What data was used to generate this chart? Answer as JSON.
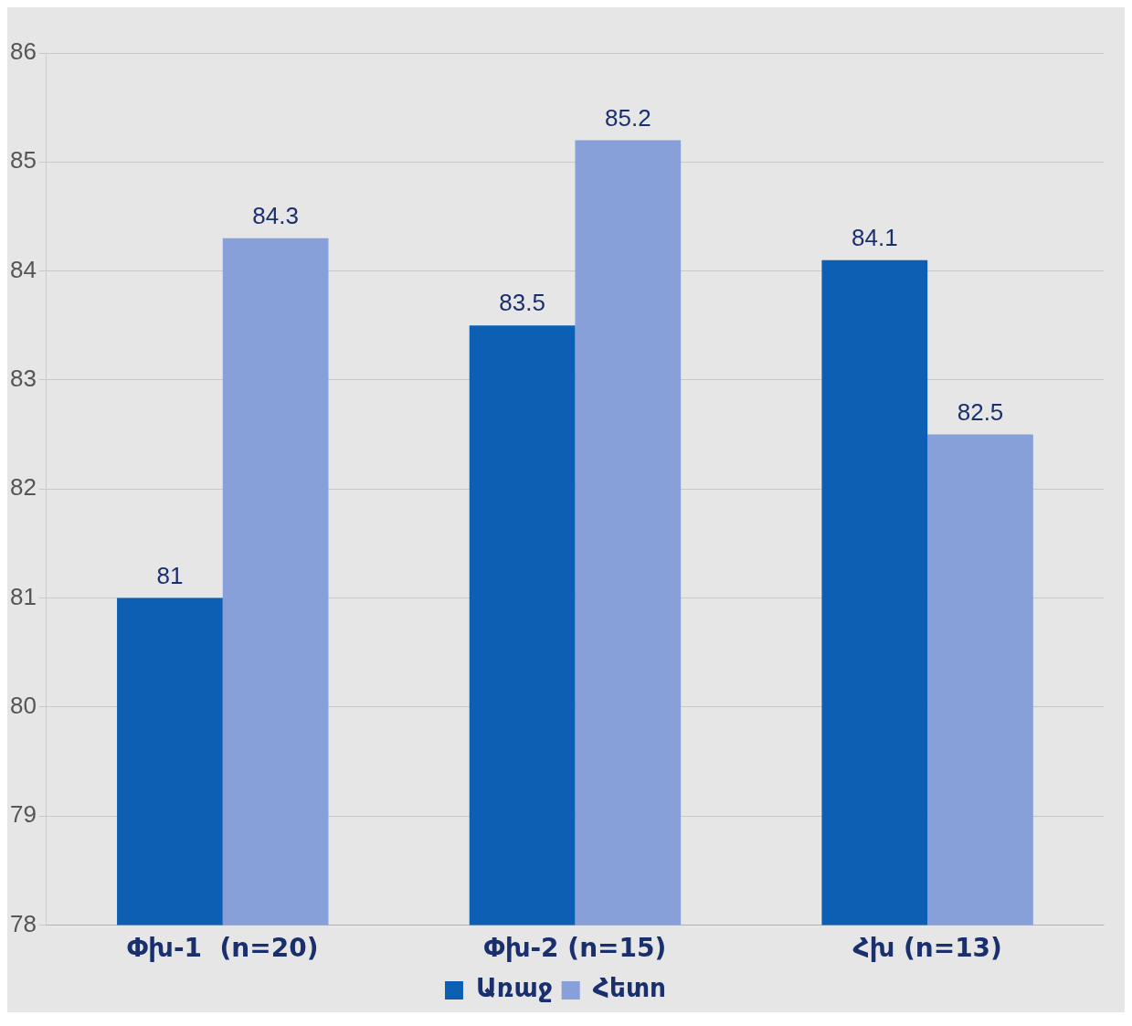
{
  "chart_data": {
    "type": "bar",
    "categories": [
      "Փխ-1  (n=20)",
      "Փխ-2 (n=15)",
      "Հխ (n=13)"
    ],
    "series": [
      {
        "name": "Առաջ",
        "color": "#0d5fb3",
        "values": [
          81,
          83.5,
          84.1
        ]
      },
      {
        "name": "Հետո",
        "color": "#87a0d9",
        "values": [
          84.3,
          85.2,
          82.5
        ]
      }
    ],
    "ylim": [
      78,
      86
    ],
    "yticks": [
      78,
      79,
      80,
      81,
      82,
      83,
      84,
      85,
      86
    ],
    "grid": "y",
    "legend": "bottom",
    "data_labels": true
  }
}
